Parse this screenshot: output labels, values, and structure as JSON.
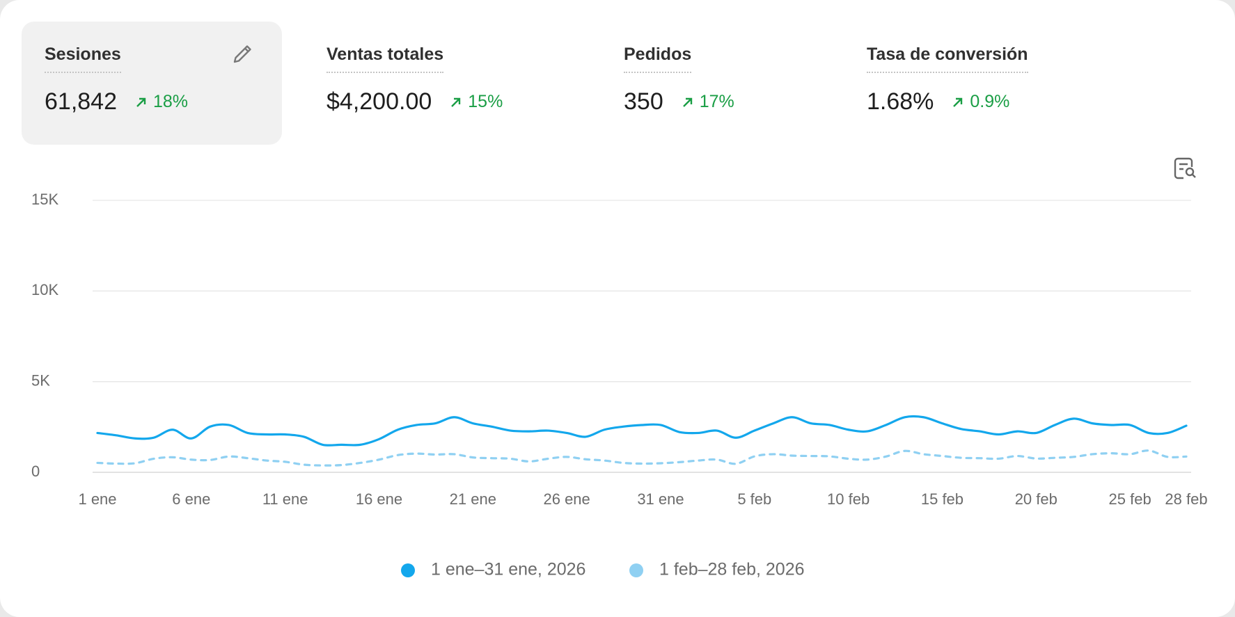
{
  "metrics": [
    {
      "label": "Sesiones",
      "value": "61,842",
      "change": "18%"
    },
    {
      "label": "Ventas totales",
      "value": "$4,200.00",
      "change": "15%"
    },
    {
      "label": "Pedidos",
      "value": "350",
      "change": "17%"
    },
    {
      "label": "Tasa de conversión",
      "value": "1.68%",
      "change": "0.9%"
    }
  ],
  "chart_data": {
    "type": "line",
    "categories": [
      "1 ene",
      null,
      null,
      null,
      null,
      "6 ene",
      null,
      null,
      null,
      null,
      "11 ene",
      null,
      null,
      null,
      null,
      "16 ene",
      null,
      null,
      null,
      null,
      "21 ene",
      null,
      null,
      null,
      null,
      "26 ene",
      null,
      null,
      null,
      null,
      "31 ene",
      null,
      null,
      null,
      null,
      "5 feb",
      null,
      null,
      null,
      null,
      "10 feb",
      null,
      null,
      null,
      null,
      "15 feb",
      null,
      null,
      null,
      null,
      "20 feb",
      null,
      null,
      null,
      null,
      "25 feb",
      null,
      null,
      "28 feb"
    ],
    "series": [
      {
        "name": "1 ene–31 ene, 2026",
        "color": "#13a7ec",
        "dashed": false,
        "values": [
          2170,
          2040,
          1870,
          1910,
          2350,
          1870,
          2520,
          2610,
          2170,
          2090,
          2090,
          1960,
          1520,
          1520,
          1520,
          1830,
          2350,
          2610,
          2700,
          3040,
          2700,
          2520,
          2300,
          2260,
          2300,
          2170,
          1960,
          2350,
          2520,
          2610,
          2610,
          2220,
          2170,
          2300,
          1910,
          2300,
          2700,
          3040,
          2700,
          2610,
          2350,
          2260,
          2610,
          3040,
          3040,
          2700,
          2390,
          2260,
          2090,
          2260,
          2170,
          2610,
          2960,
          2700,
          2610,
          2610,
          2170,
          2170,
          2570
        ]
      },
      {
        "name": "1 feb–28 feb, 2026",
        "color": "#8fd0f2",
        "dashed": true,
        "values": [
          520,
          480,
          500,
          750,
          830,
          700,
          680,
          870,
          780,
          650,
          580,
          420,
          380,
          400,
          520,
          700,
          950,
          1030,
          980,
          1000,
          820,
          780,
          750,
          600,
          750,
          850,
          720,
          650,
          520,
          480,
          500,
          560,
          650,
          700,
          470,
          880,
          1000,
          920,
          900,
          880,
          750,
          700,
          870,
          1180,
          1000,
          900,
          800,
          780,
          750,
          900,
          760,
          800,
          850,
          1000,
          1050,
          1000,
          1200,
          850,
          870
        ]
      }
    ],
    "ylim": [
      0,
      15000
    ],
    "yticks": [
      0,
      {
        "value": 5000,
        "label": "5K"
      },
      {
        "value": 10000,
        "label": "10K"
      },
      {
        "value": 15000,
        "label": "15K"
      }
    ],
    "grid": true,
    "legend": "bottom"
  }
}
